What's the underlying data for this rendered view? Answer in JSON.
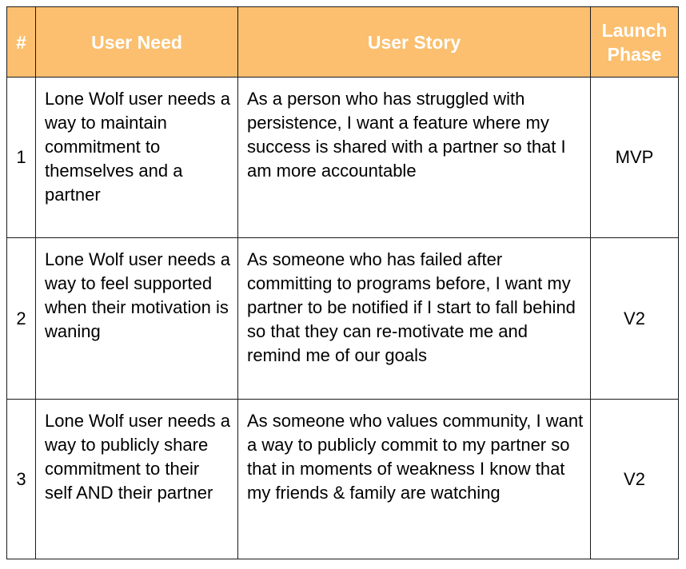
{
  "headers": {
    "num": "#",
    "need": "User Need",
    "story": "User Story",
    "phase_line1": "Launch",
    "phase_line2": "Phase"
  },
  "rows": [
    {
      "num": "1",
      "need": "Lone Wolf user needs a way to maintain commitment to themselves and a partner",
      "story": "As a person who has struggled with persistence, I want a feature where my success is shared with a partner so that I am more accountable",
      "phase": "MVP"
    },
    {
      "num": "2",
      "need": "Lone Wolf user needs a way to feel supported when their motivation is waning",
      "story": "As someone who has failed after committing to programs before, I want my partner to be notified if I start to fall behind so that they can re-motivate me and remind me of our goals",
      "phase": "V2"
    },
    {
      "num": "3",
      "need": "Lone Wolf user needs a way to publicly share commitment to their self AND their partner",
      "story": "As someone who values community, I want a way to publicly commit to my partner so that in moments of weakness I know that my friends & family are watching",
      "phase": "V2"
    }
  ],
  "colors": {
    "header_bg": "#fbbf6f",
    "header_text": "#ffffff",
    "border": "#1a1a1a"
  }
}
